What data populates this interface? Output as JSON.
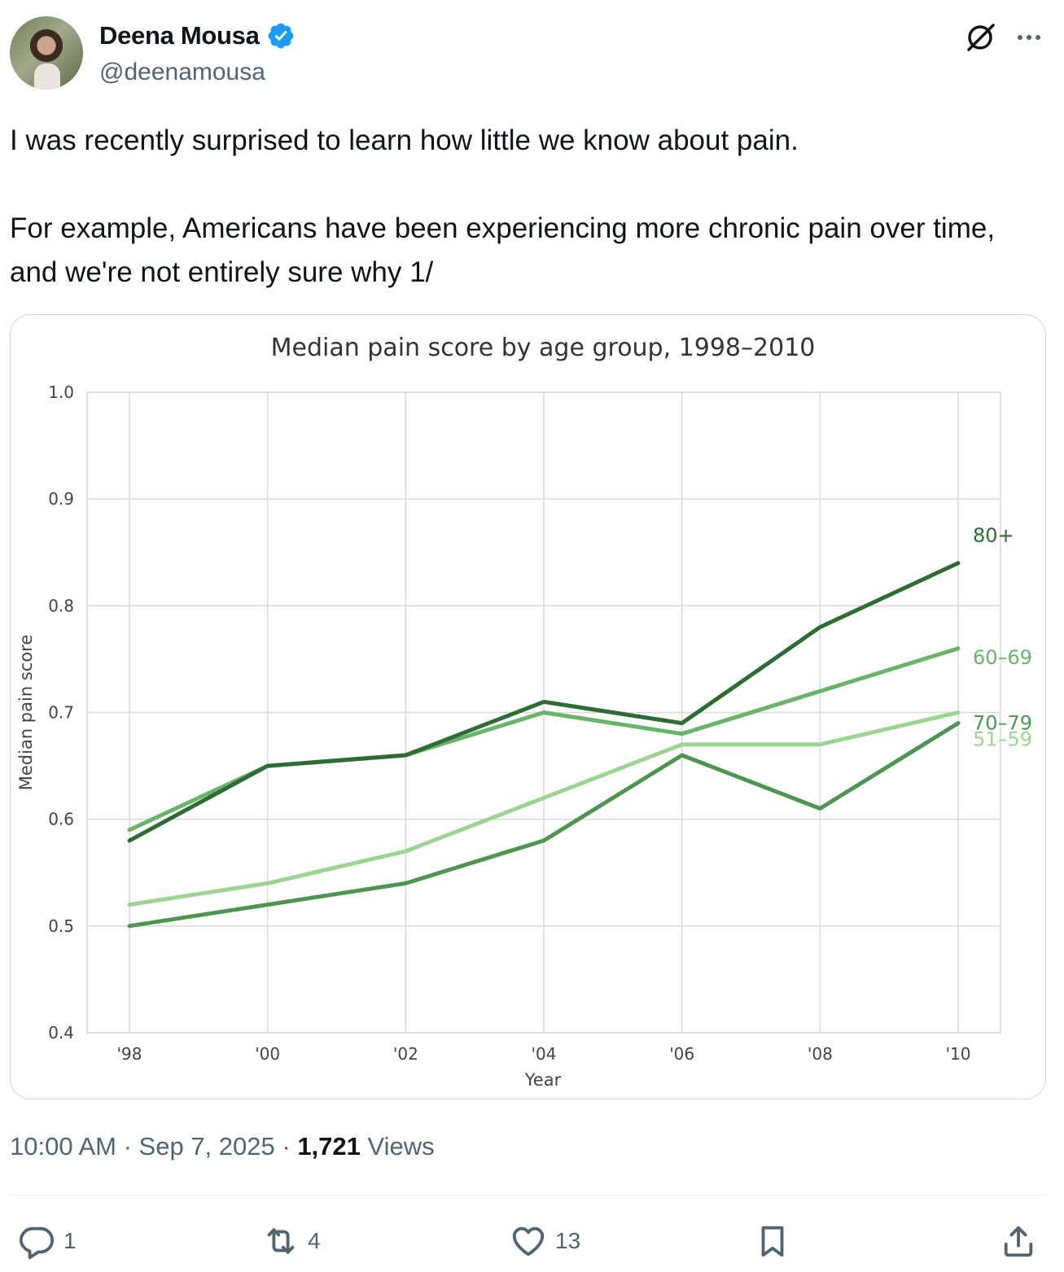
{
  "author": {
    "display_name": "Deena Mousa",
    "handle": "@deenamousa",
    "verified": true,
    "verified_color": "#1d9bf0"
  },
  "tweet": {
    "paragraphs": [
      "I was recently surprised to learn how little we know about pain.",
      "For example, Americans have been experiencing more chronic pain over time, and we're not entirely sure why 1/"
    ]
  },
  "meta": {
    "time": "10:00 AM",
    "date": "Sep 7, 2025",
    "views_count": "1,721",
    "views_label": "Views"
  },
  "actions": {
    "replies": "1",
    "reposts": "4",
    "likes": "13"
  },
  "chart_data": {
    "type": "line",
    "title": "Median pain score by age group, 1998–2010",
    "xlabel": "Year",
    "ylabel": "Median pain score",
    "categories": [
      "'98",
      "'00",
      "'02",
      "'04",
      "'06",
      "'08",
      "'10"
    ],
    "ylim": [
      0.4,
      1.0
    ],
    "yticks": [
      "0.4",
      "0.5",
      "0.6",
      "0.7",
      "0.8",
      "0.9",
      "1.0"
    ],
    "grid": true,
    "series": [
      {
        "name": "80+",
        "color": "#2e6b35",
        "values": [
          0.58,
          0.65,
          0.66,
          0.71,
          0.69,
          0.78,
          0.84
        ]
      },
      {
        "name": "60–69",
        "color": "#6ab36a",
        "values": [
          0.59,
          0.65,
          0.66,
          0.7,
          0.68,
          0.72,
          0.76
        ]
      },
      {
        "name": "70–79",
        "color": "#4e9554",
        "values": [
          0.5,
          0.52,
          0.54,
          0.58,
          0.66,
          0.61,
          0.69
        ]
      },
      {
        "name": "51–59",
        "color": "#9dd493",
        "values": [
          0.52,
          0.54,
          0.57,
          0.62,
          0.67,
          0.67,
          0.7
        ]
      }
    ]
  }
}
